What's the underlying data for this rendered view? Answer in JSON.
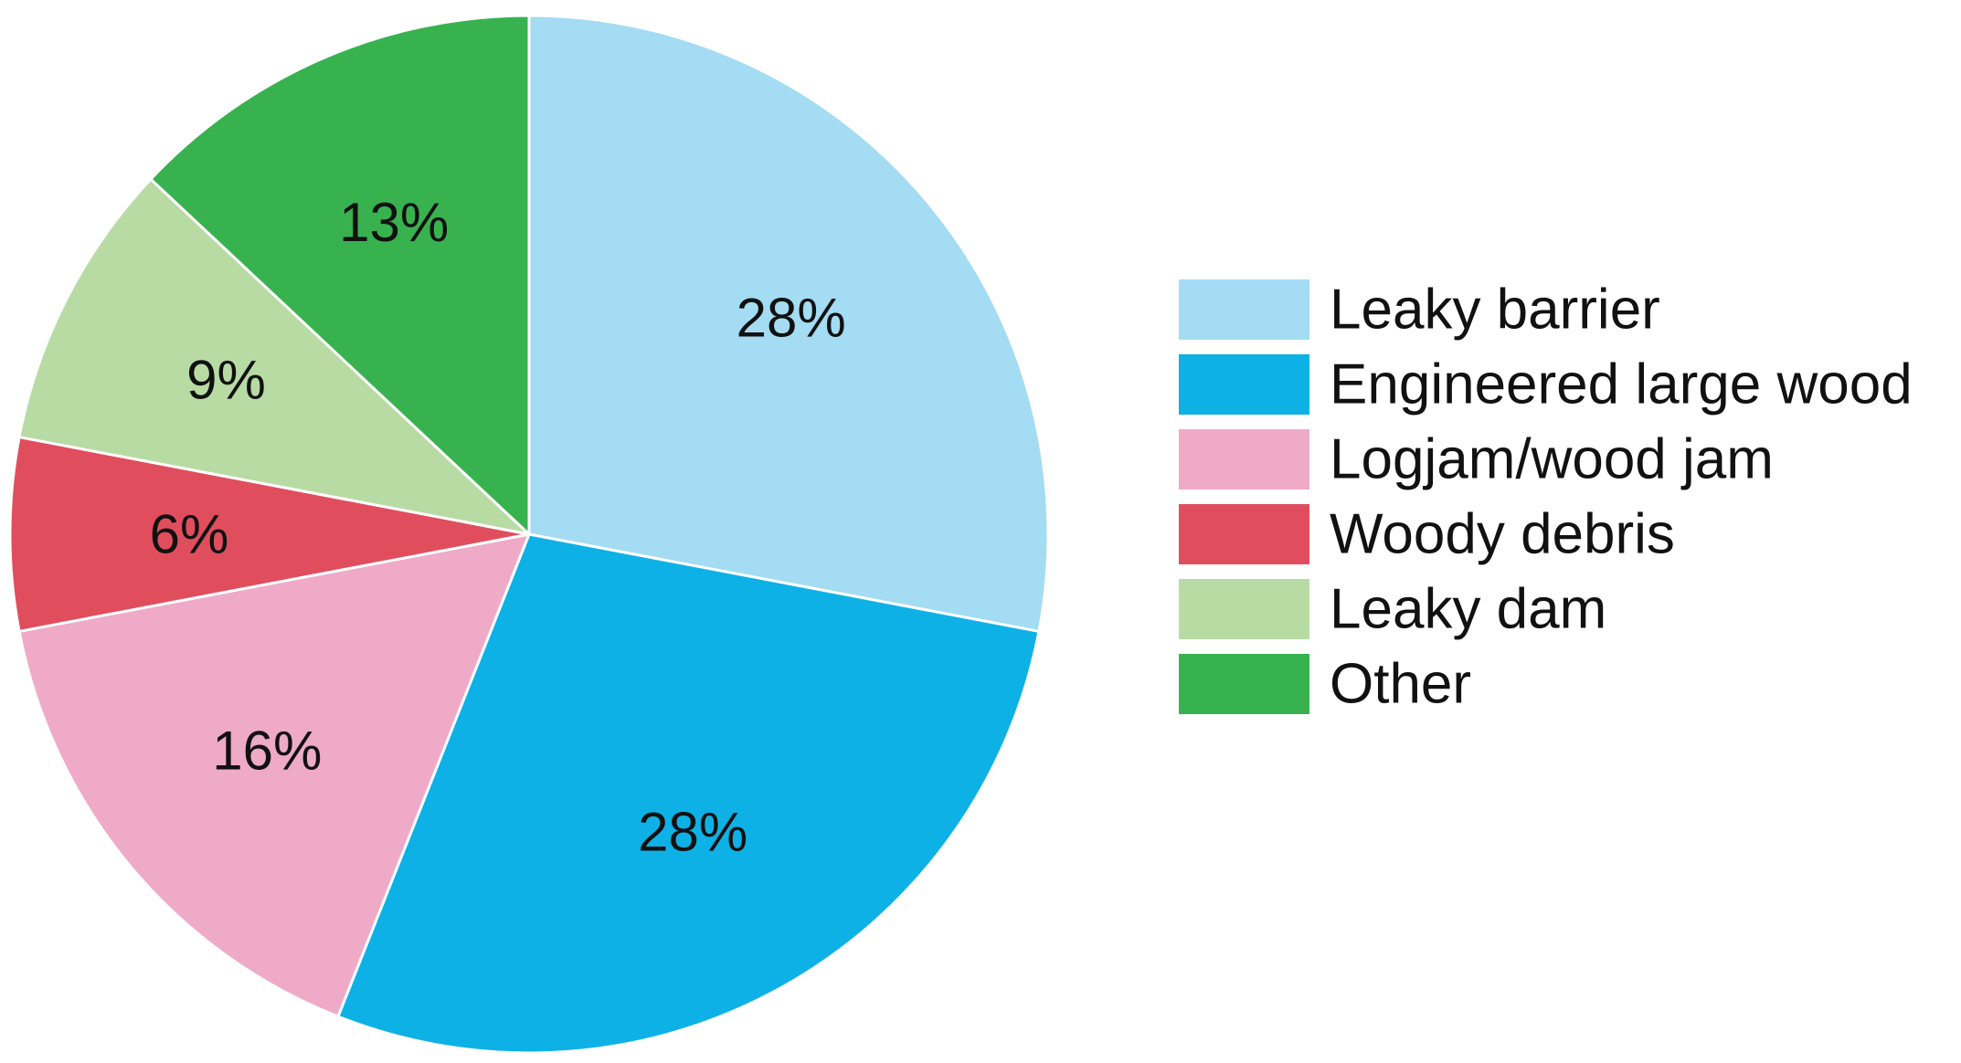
{
  "chart_data": {
    "type": "pie",
    "title": "",
    "legend_position": "right",
    "slices": [
      {
        "label": "Leaky barrier",
        "value": 28,
        "display": "28%",
        "color": "#a3dcf3"
      },
      {
        "label": "Engineered large wood",
        "value": 28,
        "display": "28%",
        "color": "#0db1e6"
      },
      {
        "label": "Logjam/wood jam",
        "value": 16,
        "display": "16%",
        "color": "#efaac8"
      },
      {
        "label": "Woody debris",
        "value": 6,
        "display": "6%",
        "color": "#e04e5e"
      },
      {
        "label": "Leaky dam",
        "value": 9,
        "display": "9%",
        "color": "#b8dba4"
      },
      {
        "label": "Other",
        "value": 13,
        "display": "13%",
        "color": "#38b24f"
      }
    ]
  }
}
